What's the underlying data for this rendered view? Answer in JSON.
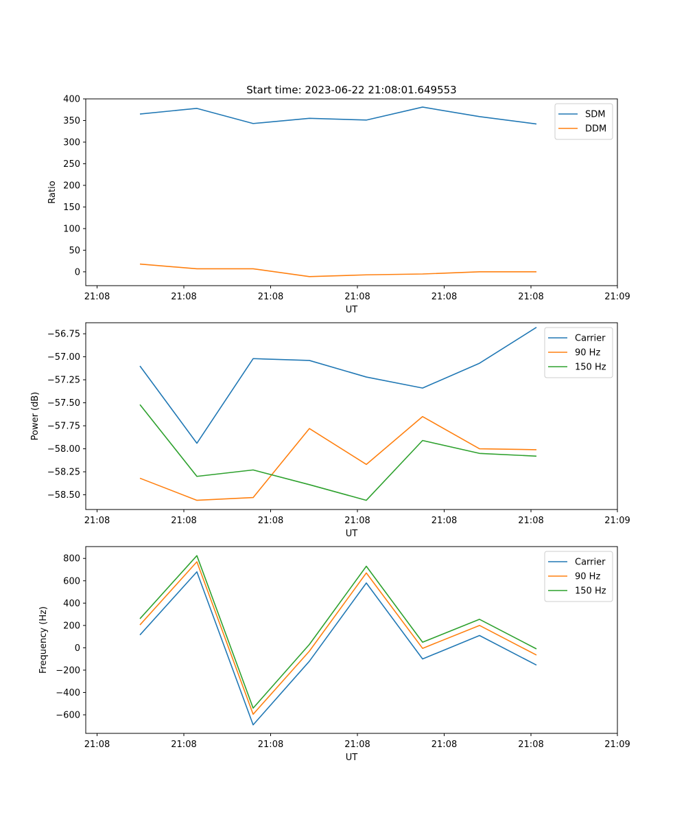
{
  "title": "Start time: 2023-06-22 21:08:01.649553",
  "colors": {
    "blue": "#1f77b4",
    "orange": "#ff7f0e",
    "green": "#2ca02c"
  },
  "chart_data": [
    {
      "type": "line",
      "xlabel": "UT",
      "ylabel": "Ratio",
      "x_tick_labels": [
        "21:08",
        "21:08",
        "21:08",
        "21:08",
        "21:08",
        "21:08",
        "21:09"
      ],
      "y_ticks": [
        "0",
        "50",
        "100",
        "150",
        "200",
        "250",
        "300",
        "350",
        "400"
      ],
      "y_tick_values": [
        0,
        50,
        100,
        150,
        200,
        250,
        300,
        350,
        400
      ],
      "ylim": [
        -32,
        400
      ],
      "legend": "top-right",
      "series": [
        {
          "name": "SDM",
          "color": "#1f77b4",
          "values": [
            365,
            378,
            343,
            355,
            351,
            381,
            359,
            342
          ]
        },
        {
          "name": "DDM",
          "color": "#ff7f0e",
          "values": [
            18,
            7,
            7,
            -11,
            -7,
            -5,
            0,
            0
          ]
        }
      ]
    },
    {
      "type": "line",
      "xlabel": "UT",
      "ylabel": "Power (dB)",
      "x_tick_labels": [
        "21:08",
        "21:08",
        "21:08",
        "21:08",
        "21:08",
        "21:08",
        "21:09"
      ],
      "y_ticks": [
        "−58.50",
        "−58.25",
        "−58.00",
        "−57.75",
        "−57.50",
        "−57.25",
        "−57.00",
        "−56.75"
      ],
      "y_tick_values": [
        -58.5,
        -58.25,
        -58.0,
        -57.75,
        -57.5,
        -57.25,
        -57.0,
        -56.75
      ],
      "ylim": [
        -58.66,
        -56.63
      ],
      "legend": "top-right",
      "series": [
        {
          "name": "Carrier",
          "color": "#1f77b4",
          "values": [
            -57.1,
            -57.94,
            -57.02,
            -57.04,
            -57.22,
            -57.34,
            -57.07,
            -56.68
          ]
        },
        {
          "name": "90 Hz",
          "color": "#ff7f0e",
          "values": [
            -58.32,
            -58.56,
            -58.53,
            -57.78,
            -58.17,
            -57.65,
            -58.0,
            -58.01
          ]
        },
        {
          "name": "150 Hz",
          "color": "#2ca02c",
          "values": [
            -57.52,
            -58.3,
            -58.23,
            -58.39,
            -58.56,
            -57.91,
            -58.05,
            -58.08
          ]
        }
      ]
    },
    {
      "type": "line",
      "xlabel": "UT",
      "ylabel": "Frequency (Hz)",
      "x_tick_labels": [
        "21:08",
        "21:08",
        "21:08",
        "21:08",
        "21:08",
        "21:08",
        "21:09"
      ],
      "y_ticks": [
        "−600",
        "−400",
        "−200",
        "0",
        "200",
        "400",
        "600",
        "800"
      ],
      "y_tick_values": [
        -600,
        -400,
        -200,
        0,
        200,
        400,
        600,
        800
      ],
      "ylim": [
        -766,
        906
      ],
      "legend": "top-right",
      "series": [
        {
          "name": "Carrier",
          "color": "#1f77b4",
          "values": [
            115,
            680,
            -690,
            -120,
            580,
            -100,
            110,
            -155
          ]
        },
        {
          "name": "90 Hz",
          "color": "#ff7f0e",
          "values": [
            205,
            770,
            -595,
            -30,
            670,
            -5,
            200,
            -65
          ]
        },
        {
          "name": "150 Hz",
          "color": "#2ca02c",
          "values": [
            260,
            825,
            -540,
            30,
            730,
            50,
            255,
            -10
          ]
        }
      ]
    }
  ]
}
